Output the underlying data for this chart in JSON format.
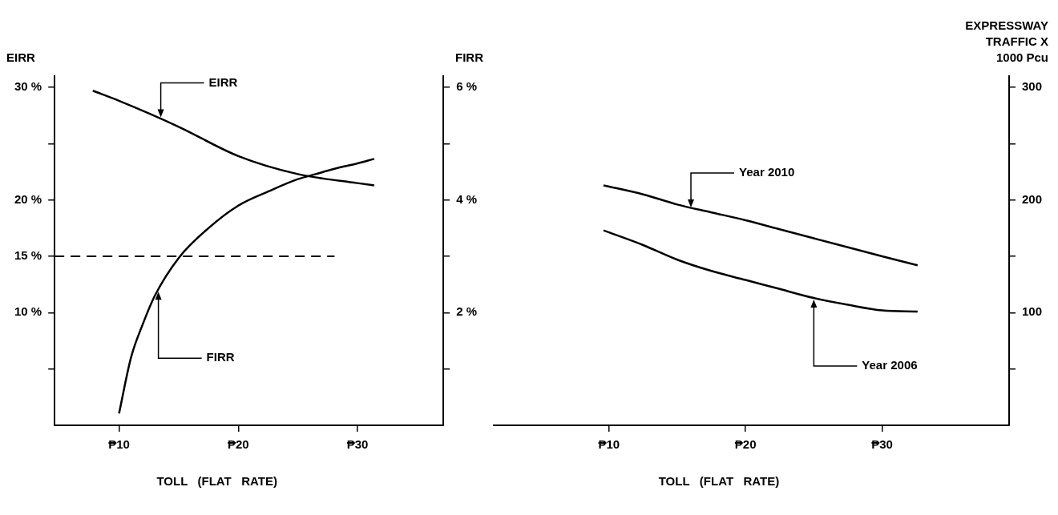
{
  "chart_data": [
    {
      "type": "line",
      "xlabel": "TOLL (FLAT RATE)",
      "ylabel": "EIRR",
      "y2label": "FIRR",
      "xlim": [
        4.6,
        37.2
      ],
      "xticks": [
        {
          "value": 10,
          "label": "₱10"
        },
        {
          "value": 20,
          "label": "₱20"
        },
        {
          "value": 30,
          "label": "₱30"
        }
      ],
      "ylim": [
        0,
        31
      ],
      "yticks": [
        {
          "value": 5,
          "label": null
        },
        {
          "value": 10,
          "label": "10 %"
        },
        {
          "value": 15,
          "label": "15 %"
        },
        {
          "value": 20,
          "label": "20 %"
        },
        {
          "value": 25,
          "label": null
        },
        {
          "value": 30,
          "label": "30 %"
        }
      ],
      "y2lim": [
        0,
        6.2
      ],
      "y2ticks": [
        {
          "value": 1,
          "label": null
        },
        {
          "value": 2,
          "label": "2 %"
        },
        {
          "value": 3,
          "label": null
        },
        {
          "value": 4,
          "label": "4 %"
        },
        {
          "value": 5,
          "label": null
        },
        {
          "value": 6,
          "label": "6 %"
        }
      ],
      "series": [
        {
          "color": "#000000",
          "x": [
            7.8,
            10,
            15,
            20,
            25,
            30,
            31.4
          ],
          "values": [
            29.7,
            28.8,
            26.5,
            23.9,
            22.3,
            21.5,
            21.3
          ]
        },
        {
          "color": "#000000",
          "axis": "y2",
          "x": [
            10,
            11,
            12,
            13,
            15,
            17.5,
            20,
            22.5,
            25,
            26.5,
            28,
            30,
            31.4
          ],
          "values": [
            0.21,
            1.2,
            1.8,
            2.3,
            2.97,
            3.5,
            3.9,
            4.15,
            4.37,
            4.46,
            4.55,
            4.65,
            4.73
          ]
        }
      ],
      "ref_lines": [
        {
          "axis": "y",
          "value": 15,
          "color": "#000000",
          "line_style": "dashed"
        }
      ],
      "annotations": [
        {
          "text": "EIRR",
          "x": 13.5,
          "y": 27.2
        },
        {
          "text": "FIRR",
          "x": 13.3,
          "y": 12
        }
      ],
      "grid": false,
      "legend": false,
      "marker": "none"
    },
    {
      "type": "line",
      "xlabel": "TOLL (FLAT RATE)",
      "ylabel": "EXPRESSWAY TRAFFIC X 1000 Pcu",
      "xlim": [
        1.5,
        39.3
      ],
      "xticks": [
        {
          "value": 10,
          "label": "₱10"
        },
        {
          "value": 20,
          "label": "₱20"
        },
        {
          "value": 30,
          "label": "₱30"
        }
      ],
      "ylim": [
        0,
        310
      ],
      "yticks": [
        {
          "value": 50,
          "label": null
        },
        100,
        {
          "value": 150,
          "label": null
        },
        200,
        {
          "value": 250,
          "label": null
        },
        300
      ],
      "series": [
        {
          "color": "#000000",
          "x": [
            9.6,
            12.5,
            15,
            17.5,
            20,
            22.5,
            25,
            27.5,
            30,
            32.6
          ],
          "values": [
            213,
            205,
            196,
            189,
            182,
            174,
            166,
            158,
            150,
            142
          ]
        },
        {
          "color": "#000000",
          "x": [
            9.6,
            12.5,
            15,
            17.5,
            20,
            22.5,
            25,
            27.5,
            30,
            32.6
          ],
          "values": [
            173,
            160,
            147,
            137,
            129,
            121,
            113,
            107,
            102,
            101
          ]
        }
      ],
      "annotations": [
        {
          "text": "Year 2010",
          "x": 16,
          "y": 192
        },
        {
          "text": "Year 2006",
          "x": 25,
          "y": 113
        }
      ],
      "grid": false,
      "legend": false,
      "marker": "none"
    }
  ]
}
